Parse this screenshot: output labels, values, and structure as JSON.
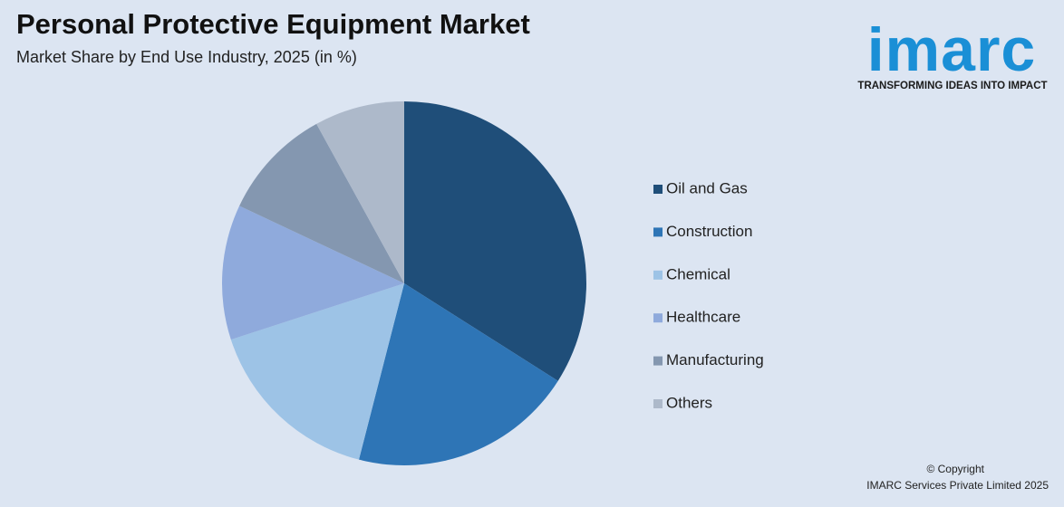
{
  "chart_data": {
    "type": "pie",
    "title": "Personal Protective Equipment Market",
    "subtitle": "Market Share by End Use Industry, 2025 (in %)",
    "categories": [
      "Oil and Gas",
      "Construction",
      "Chemical",
      "Healthcare",
      "Manufacturing",
      "Others"
    ],
    "values": [
      34,
      20,
      16,
      12,
      10,
      8
    ],
    "colors": [
      "#1f4e79",
      "#2e75b6",
      "#9dc3e6",
      "#8faadc",
      "#8497b0",
      "#adb9ca"
    ]
  },
  "logo": {
    "name": "imarc",
    "tagline": "TRANSFORMING IDEAS INTO IMPACT"
  },
  "footer": {
    "copyright": "© Copyright",
    "owner": "IMARC Services Private Limited 2025"
  }
}
